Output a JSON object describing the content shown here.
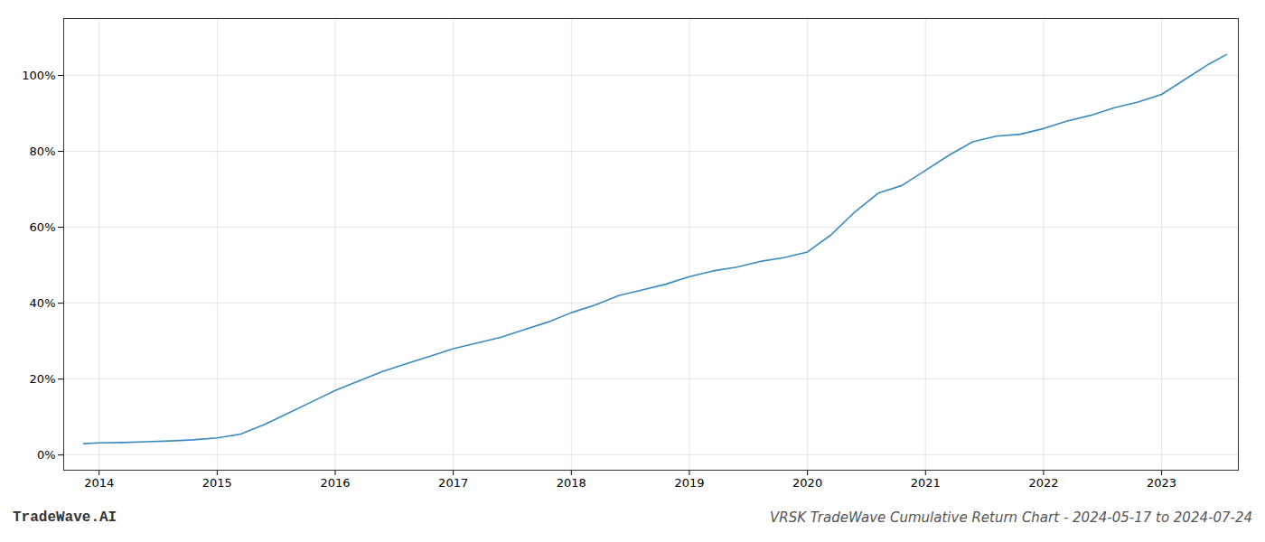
{
  "chart_data": {
    "type": "line",
    "title": "VRSK TradeWave Cumulative Return Chart - 2024-05-17 to 2024-07-24",
    "annotations": [
      "TradeWave.AI"
    ],
    "x": [
      2013.87,
      2014.0,
      2014.2,
      2014.4,
      2014.6,
      2014.8,
      2015.0,
      2015.2,
      2015.4,
      2015.6,
      2015.8,
      2016.0,
      2016.2,
      2016.4,
      2016.6,
      2016.8,
      2017.0,
      2017.2,
      2017.4,
      2017.6,
      2017.8,
      2018.0,
      2018.2,
      2018.4,
      2018.6,
      2018.8,
      2019.0,
      2019.2,
      2019.4,
      2019.6,
      2019.8,
      2020.0,
      2020.2,
      2020.4,
      2020.6,
      2020.8,
      2021.0,
      2021.2,
      2021.4,
      2021.6,
      2021.8,
      2022.0,
      2022.2,
      2022.4,
      2022.6,
      2022.8,
      2023.0,
      2023.2,
      2023.4,
      2023.55
    ],
    "values": [
      3.0,
      3.2,
      3.3,
      3.5,
      3.7,
      4.0,
      4.5,
      5.5,
      8.0,
      11.0,
      14.0,
      17.0,
      19.5,
      22.0,
      24.0,
      26.0,
      28.0,
      29.5,
      31.0,
      33.0,
      35.0,
      37.5,
      39.5,
      42.0,
      43.5,
      45.0,
      47.0,
      48.5,
      49.5,
      51.0,
      52.0,
      53.5,
      58.0,
      64.0,
      69.0,
      71.0,
      75.0,
      79.0,
      82.5,
      84.0,
      84.5,
      86.0,
      88.0,
      89.5,
      91.5,
      93.0,
      95.0,
      99.0,
      103.0,
      105.5
    ],
    "color": "#3a8abf",
    "xlim": [
      2013.7,
      2023.65
    ],
    "ylim": [
      -4,
      115
    ],
    "xticks": [
      2014,
      2015,
      2016,
      2017,
      2018,
      2019,
      2020,
      2021,
      2022,
      2023
    ],
    "yticks": [
      {
        "value": 0,
        "label": "0%"
      },
      {
        "value": 20,
        "label": "20%"
      },
      {
        "value": 40,
        "label": "40%"
      },
      {
        "value": 60,
        "label": "60%"
      },
      {
        "value": 80,
        "label": "80%"
      },
      {
        "value": 100,
        "label": "100%"
      }
    ],
    "grid": true
  }
}
